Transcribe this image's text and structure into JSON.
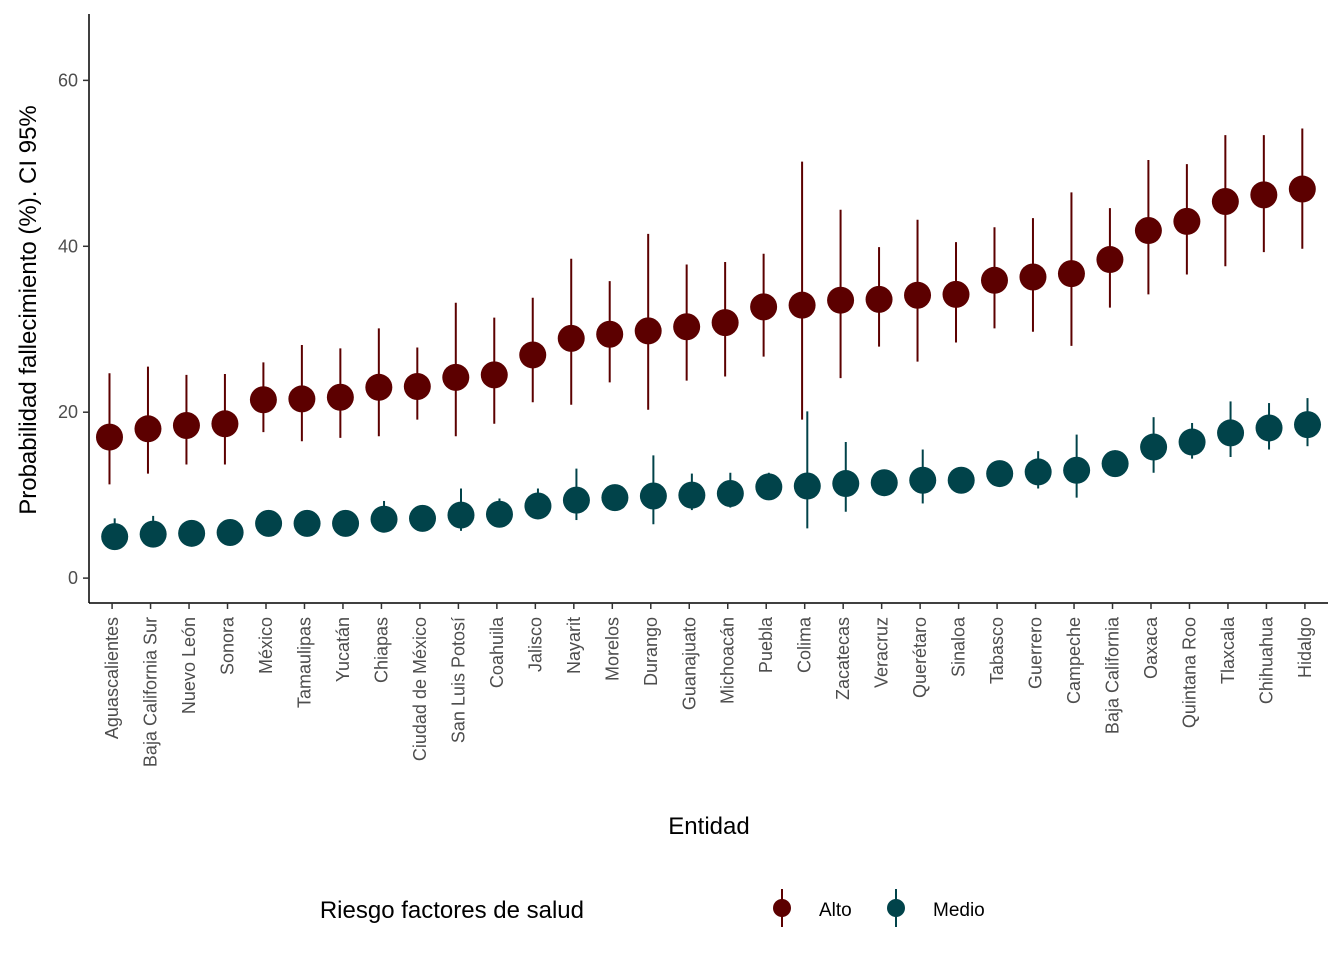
{
  "chart_data": {
    "type": "scatter",
    "subtype": "pointrange",
    "title": "",
    "xlabel": "Entidad",
    "ylabel": "Probabilidad fallecimiento (%). CI 95%",
    "ylim": [
      -3,
      68
    ],
    "yticks": [
      0,
      20,
      40,
      60
    ],
    "grid": false,
    "legend": {
      "title": "Riesgo factores de salud",
      "placement": "bottom"
    },
    "categories": [
      "Aguascalientes",
      "Baja California Sur",
      "Nuevo León",
      "Sonora",
      "México",
      "Tamaulipas",
      "Yucatán",
      "Chiapas",
      "Ciudad de México",
      "San Luis Potosí",
      "Coahuila",
      "Jalisco",
      "Nayarit",
      "Morelos",
      "Durango",
      "Guanajuato",
      "Michoacán",
      "Puebla",
      "Colima",
      "Zacatecas",
      "Veracruz",
      "Querétaro",
      "Sinaloa",
      "Tabasco",
      "Guerrero",
      "Campeche",
      "Baja California",
      "Oaxaca",
      "Quintana Roo",
      "Tlaxcala",
      "Chihuahua",
      "Hidalgo"
    ],
    "series": [
      {
        "name": "Alto",
        "color": "#5c0000",
        "values": [
          17.0,
          18.0,
          18.4,
          18.6,
          21.5,
          21.6,
          21.8,
          23.0,
          23.1,
          24.2,
          24.5,
          26.9,
          28.9,
          29.4,
          29.8,
          30.3,
          30.8,
          32.7,
          32.9,
          33.5,
          33.6,
          34.1,
          34.2,
          35.9,
          36.3,
          36.7,
          38.4,
          41.9,
          43.0,
          45.4,
          46.2,
          46.9
        ],
        "lower": [
          11.3,
          12.6,
          13.7,
          13.7,
          17.6,
          16.5,
          16.9,
          17.1,
          19.1,
          17.1,
          18.6,
          21.2,
          20.9,
          23.6,
          20.3,
          23.8,
          24.3,
          26.7,
          19.1,
          24.1,
          27.9,
          26.1,
          28.4,
          30.1,
          29.7,
          28.0,
          32.6,
          34.2,
          36.6,
          37.6,
          39.3,
          39.7
        ],
        "upper": [
          24.7,
          25.5,
          24.5,
          24.6,
          26.0,
          28.1,
          27.7,
          30.1,
          27.8,
          33.2,
          31.4,
          33.8,
          38.5,
          35.8,
          41.5,
          37.8,
          38.1,
          39.1,
          50.2,
          44.4,
          39.9,
          43.2,
          40.5,
          42.3,
          43.4,
          46.5,
          44.6,
          50.4,
          49.9,
          53.4,
          53.4,
          54.2
        ]
      },
      {
        "name": "Medio",
        "color": "#01434a",
        "values": [
          5.0,
          5.3,
          5.4,
          5.5,
          6.6,
          6.6,
          6.6,
          7.1,
          7.2,
          7.6,
          7.7,
          8.7,
          9.4,
          9.7,
          9.9,
          10.0,
          10.2,
          11.0,
          11.1,
          11.4,
          11.5,
          11.8,
          11.8,
          12.6,
          12.8,
          13.0,
          13.8,
          15.8,
          16.4,
          17.5,
          18.1,
          18.5
        ],
        "lower": [
          4.0,
          4.4,
          4.7,
          4.8,
          5.7,
          5.9,
          5.8,
          6.1,
          6.3,
          5.7,
          6.5,
          7.4,
          7.0,
          8.3,
          6.5,
          8.2,
          8.5,
          9.6,
          6.0,
          8.0,
          10.3,
          9.0,
          10.6,
          11.3,
          10.8,
          9.7,
          12.6,
          12.7,
          14.4,
          14.6,
          15.5,
          15.9
        ],
        "upper": [
          7.2,
          7.5,
          6.4,
          6.3,
          7.5,
          7.6,
          7.6,
          9.3,
          8.4,
          10.8,
          9.6,
          10.8,
          13.2,
          11.0,
          14.8,
          12.6,
          12.7,
          12.7,
          20.1,
          16.4,
          13.0,
          15.5,
          13.2,
          13.9,
          15.3,
          17.3,
          15.4,
          19.4,
          18.7,
          21.3,
          21.1,
          21.7
        ]
      }
    ]
  }
}
